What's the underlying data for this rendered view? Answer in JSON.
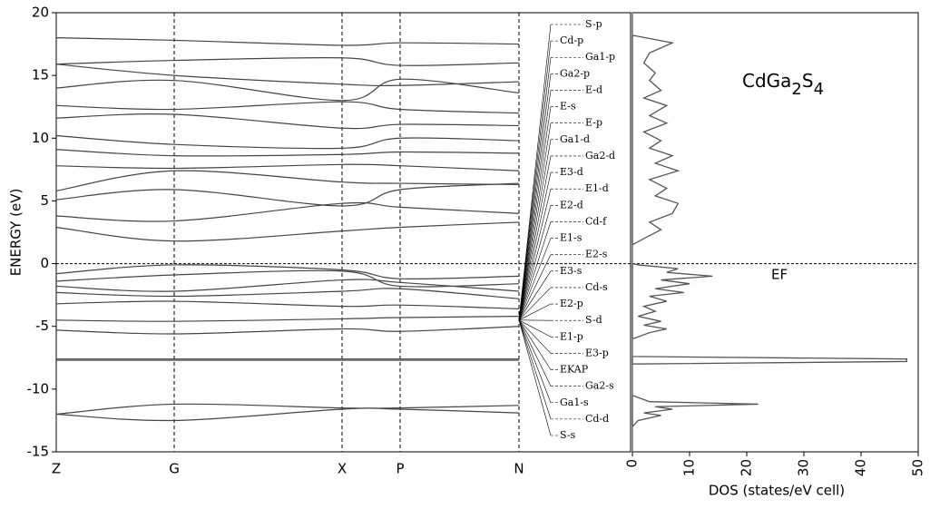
{
  "chart_data": [
    {
      "type": "band",
      "y_label": "ENERGY (eV)",
      "categories": [
        "Z",
        "G",
        "X",
        "P",
        "N"
      ],
      "ylim": [
        -15,
        20
      ],
      "yticks": [
        -15,
        -10,
        -5,
        0,
        5,
        10,
        15,
        20
      ],
      "color": "#444444",
      "series": [
        {
          "values": [
            -12.0,
            -12.5,
            -11.6,
            -11.6,
            -11.9
          ]
        },
        {
          "values": [
            -12.0,
            -11.2,
            -11.5,
            -11.5,
            -11.3
          ]
        },
        {
          "values": [
            -7.7,
            -7.7,
            -7.7,
            -7.7,
            -7.7
          ]
        },
        {
          "values": [
            -7.6,
            -7.6,
            -7.6,
            -7.6,
            -7.6
          ]
        },
        {
          "values": [
            -5.3,
            -5.6,
            -5.2,
            -5.4,
            -5.0
          ]
        },
        {
          "values": [
            -4.5,
            -4.6,
            -4.4,
            -4.3,
            -4.2
          ]
        },
        {
          "values": [
            -3.2,
            -3.0,
            -3.4,
            -3.3,
            -3.6
          ]
        },
        {
          "values": [
            -2.3,
            -2.6,
            -2.2,
            -2.0,
            -2.8
          ]
        },
        {
          "values": [
            -1.8,
            -2.2,
            -1.3,
            -1.5,
            -2.2
          ]
        },
        {
          "values": [
            -1.4,
            -0.9,
            -0.6,
            -1.8,
            -1.6
          ]
        },
        {
          "values": [
            -0.8,
            -0.1,
            -0.5,
            -1.2,
            -1.0
          ]
        },
        {
          "values": [
            2.9,
            1.8,
            2.6,
            2.9,
            3.3
          ]
        },
        {
          "values": [
            3.8,
            3.4,
            4.8,
            4.5,
            4.0
          ]
        },
        {
          "values": [
            5.1,
            5.9,
            4.6,
            5.9,
            6.4
          ]
        },
        {
          "values": [
            5.8,
            7.4,
            6.5,
            6.4,
            6.3
          ]
        },
        {
          "values": [
            7.8,
            7.6,
            7.9,
            7.8,
            7.4
          ]
        },
        {
          "values": [
            9.1,
            8.6,
            8.7,
            8.9,
            8.8
          ]
        },
        {
          "values": [
            10.2,
            9.5,
            9.2,
            10.0,
            9.8
          ]
        },
        {
          "values": [
            11.6,
            11.9,
            10.8,
            11.1,
            11.0
          ]
        },
        {
          "values": [
            12.6,
            12.3,
            12.9,
            12.3,
            12.0
          ]
        },
        {
          "values": [
            14.0,
            14.6,
            13.0,
            14.7,
            13.6
          ]
        },
        {
          "values": [
            15.9,
            15.0,
            14.3,
            14.2,
            14.5
          ]
        },
        {
          "values": [
            15.9,
            16.2,
            16.4,
            15.8,
            16.0
          ]
        },
        {
          "values": [
            18.0,
            17.8,
            17.4,
            17.6,
            17.5
          ]
        }
      ],
      "annotations": [
        "S-p",
        "Cd-p",
        "Ga1-p",
        "Ga2-p",
        "E-d",
        "E-s",
        "E-p",
        "Ga1-d",
        "Ga2-d",
        "E3-d",
        "E1-d",
        "E2-d",
        "Cd-f",
        "E1-s",
        "E2-s",
        "E3-s",
        "Cd-s",
        "E2-p",
        "S-d",
        "E1-p",
        "E3-p",
        "EKAP",
        "Ga2-s",
        "Ga1-s",
        "Cd-d",
        "S-s"
      ]
    },
    {
      "type": "dos",
      "title": [
        "CdGa",
        "2",
        "S",
        "4"
      ],
      "x_label": "DOS (states/eV cell)",
      "annotation": "EF",
      "xlim": [
        0,
        50
      ],
      "xticks": [
        0,
        10,
        20,
        30,
        40,
        50
      ],
      "ylim": [
        -15,
        20
      ],
      "color": "#555555",
      "y": [
        -15,
        -13,
        -12.5,
        -12.1,
        -11.9,
        -11.6,
        -11.4,
        -11.2,
        -11.0,
        -10.5,
        -8,
        -7.8,
        -7.6,
        -7.4,
        -6,
        -5.5,
        -5.2,
        -4.9,
        -4.6,
        -4.2,
        -3.8,
        -3.4,
        -3.0,
        -2.6,
        -2.3,
        -2.0,
        -1.6,
        -1.3,
        -1.0,
        -0.7,
        -0.4,
        -0.1,
        0,
        1.5,
        2.0,
        2.7,
        3.3,
        4.0,
        4.8,
        5.4,
        6.0,
        6.7,
        7.4,
        8.0,
        8.6,
        9.2,
        9.8,
        10.5,
        11.2,
        11.8,
        12.6,
        13.2,
        13.8,
        14.6,
        15.2,
        16.0,
        16.8,
        17.6,
        18.2,
        20
      ],
      "values": [
        0,
        0,
        1,
        5,
        2,
        7,
        4,
        22,
        3,
        0,
        0,
        48,
        48,
        0,
        0,
        3,
        6,
        2,
        5,
        1,
        4,
        2,
        6,
        3,
        9,
        4,
        10,
        5,
        14,
        6,
        8,
        1,
        0,
        0,
        2,
        5,
        3,
        7,
        8,
        4,
        6,
        3,
        8,
        4,
        7,
        3,
        5,
        2,
        6,
        3,
        6,
        2,
        5,
        3,
        4,
        2,
        3,
        7,
        0,
        0
      ]
    }
  ]
}
